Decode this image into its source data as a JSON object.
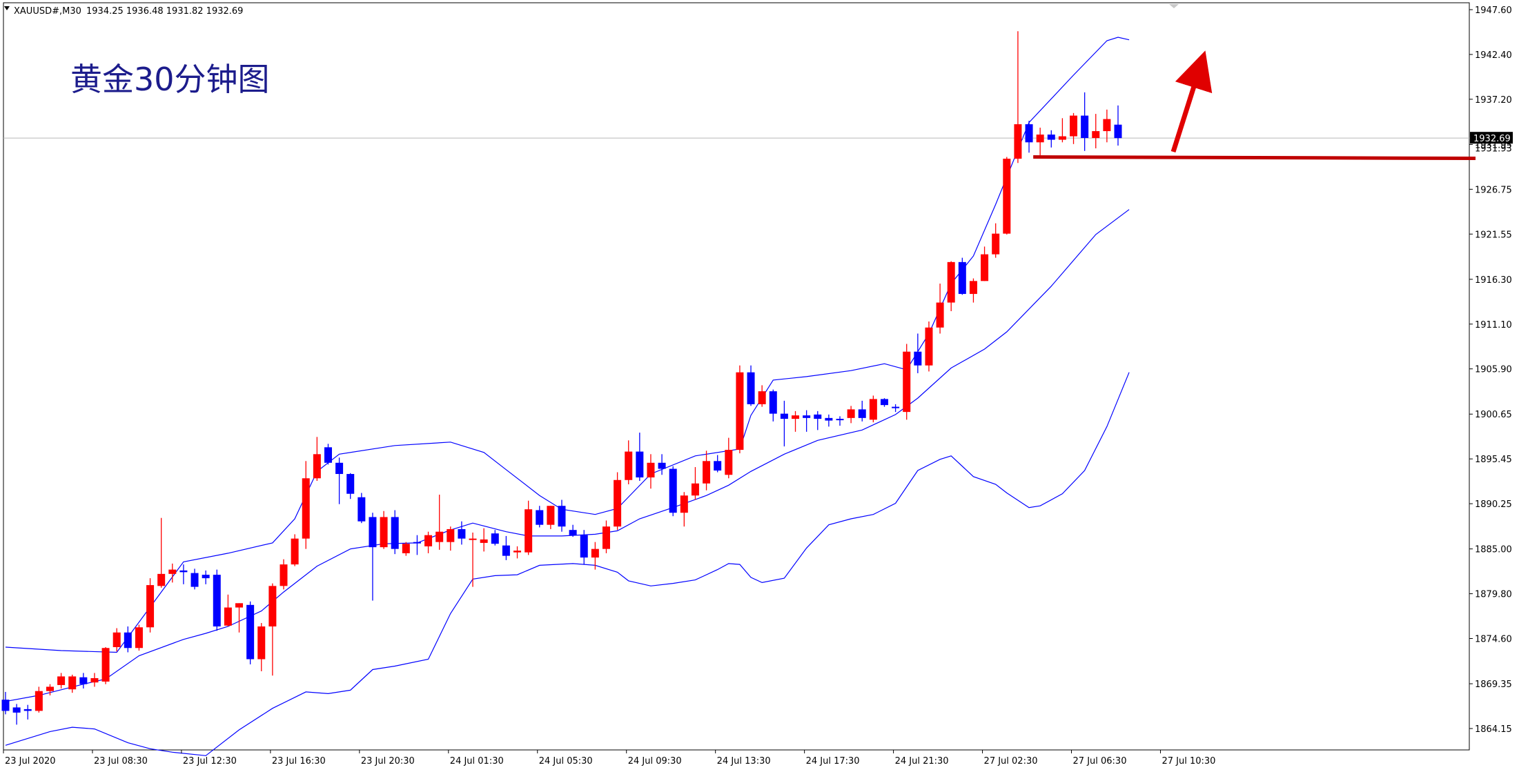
{
  "header": {
    "symbol": "XAUUSD#,M30",
    "ohlc": "1934.25 1936.48 1931.82 1932.69"
  },
  "annotation_title": "黄金30分钟图",
  "current_price_label": "1932.69",
  "hidden_price_label": "1931.93",
  "colors": {
    "bull": "#ff0000",
    "bear": "#0000ff",
    "bands": "#0000ff",
    "annotation": "#e00000",
    "title": "#1c1c8c",
    "grid": "#000000"
  },
  "chart_data": {
    "type": "candlestick",
    "title": "黄金30分钟图",
    "ylim": [
      1861.2,
      1947.6
    ],
    "y_ticks": [
      "1947.60",
      "1942.40",
      "1937.20",
      "1931.95",
      "1926.75",
      "1921.55",
      "1916.30",
      "1911.10",
      "1905.90",
      "1900.65",
      "1895.45",
      "1890.25",
      "1885.00",
      "1879.80",
      "1874.60",
      "1869.35",
      "1864.15"
    ],
    "x_ticks": [
      {
        "label": "23 Jul 2020",
        "bar": 0
      },
      {
        "label": "23 Jul 08:30",
        "bar": 8
      },
      {
        "label": "23 Jul 12:30",
        "bar": 16
      },
      {
        "label": "23 Jul 16:30",
        "bar": 24
      },
      {
        "label": "23 Jul 20:30",
        "bar": 32
      },
      {
        "label": "24 Jul 01:30",
        "bar": 40
      },
      {
        "label": "24 Jul 05:30",
        "bar": 48
      },
      {
        "label": "24 Jul 09:30",
        "bar": 56
      },
      {
        "label": "24 Jul 13:30",
        "bar": 64
      },
      {
        "label": "24 Jul 17:30",
        "bar": 72
      },
      {
        "label": "24 Jul 21:30",
        "bar": 80
      },
      {
        "label": "27 Jul 02:30",
        "bar": 88
      },
      {
        "label": "27 Jul 06:30",
        "bar": 96
      },
      {
        "label": "27 Jul 10:30",
        "bar": 104
      }
    ],
    "candles": [
      [
        1867.5,
        1868.4,
        1865.8,
        1866.2
      ],
      [
        1866.6,
        1867.0,
        1864.6,
        1866.0
      ],
      [
        1866.4,
        1866.9,
        1865.2,
        1866.2
      ],
      [
        1866.2,
        1869.0,
        1866.0,
        1868.5
      ],
      [
        1868.5,
        1869.3,
        1868.0,
        1869.0
      ],
      [
        1869.2,
        1870.6,
        1868.8,
        1870.2
      ],
      [
        1868.7,
        1870.4,
        1868.3,
        1870.2
      ],
      [
        1870.1,
        1870.6,
        1868.8,
        1869.3
      ],
      [
        1869.5,
        1870.6,
        1869.0,
        1870.0
      ],
      [
        1869.6,
        1873.6,
        1869.3,
        1873.5
      ],
      [
        1873.6,
        1875.8,
        1873.1,
        1875.3
      ],
      [
        1875.3,
        1876.0,
        1873.0,
        1873.5
      ],
      [
        1873.5,
        1876.2,
        1873.2,
        1875.9
      ],
      [
        1875.9,
        1881.6,
        1875.3,
        1880.8
      ],
      [
        1880.7,
        1888.6,
        1880.5,
        1882.1
      ],
      [
        1882.1,
        1883.3,
        1881.1,
        1882.6
      ],
      [
        1882.5,
        1883.2,
        1880.9,
        1882.3
      ],
      [
        1882.2,
        1882.7,
        1880.3,
        1880.6
      ],
      [
        1882.0,
        1882.5,
        1880.9,
        1881.6
      ],
      [
        1882.0,
        1882.6,
        1875.5,
        1876.0
      ],
      [
        1876.1,
        1879.7,
        1876.0,
        1878.2
      ],
      [
        1878.2,
        1878.7,
        1875.3,
        1878.7
      ],
      [
        1878.5,
        1878.9,
        1871.6,
        1872.2
      ],
      [
        1872.2,
        1876.4,
        1870.8,
        1876.0
      ],
      [
        1876.0,
        1881.0,
        1870.3,
        1880.7
      ],
      [
        1880.7,
        1883.8,
        1880.3,
        1883.2
      ],
      [
        1883.2,
        1886.7,
        1883.0,
        1886.2
      ],
      [
        1886.2,
        1895.2,
        1885.0,
        1893.2
      ],
      [
        1893.2,
        1898.0,
        1892.9,
        1896.0
      ],
      [
        1896.8,
        1897.2,
        1894.8,
        1895.0
      ],
      [
        1895.0,
        1895.6,
        1890.2,
        1893.7
      ],
      [
        1893.7,
        1893.8,
        1890.8,
        1891.4
      ],
      [
        1891.0,
        1891.5,
        1888.0,
        1888.2
      ],
      [
        1888.7,
        1889.2,
        1879.0,
        1885.2
      ],
      [
        1885.2,
        1889.4,
        1885.0,
        1888.7
      ],
      [
        1888.7,
        1889.5,
        1884.4,
        1885.0
      ],
      [
        1884.5,
        1885.8,
        1884.2,
        1885.6
      ],
      [
        1885.8,
        1886.6,
        1884.3,
        1885.7
      ],
      [
        1885.3,
        1887.0,
        1884.5,
        1886.6
      ],
      [
        1885.8,
        1891.3,
        1884.9,
        1887.0
      ],
      [
        1885.8,
        1887.6,
        1884.8,
        1887.3
      ],
      [
        1887.3,
        1888.2,
        1885.5,
        1886.2
      ],
      [
        1886.2,
        1886.9,
        1880.6,
        1886.2
      ],
      [
        1885.7,
        1887.4,
        1884.7,
        1886.1
      ],
      [
        1886.8,
        1887.2,
        1885.4,
        1885.6
      ],
      [
        1885.4,
        1886.5,
        1883.7,
        1884.2
      ],
      [
        1884.6,
        1885.3,
        1883.9,
        1884.8
      ],
      [
        1884.6,
        1890.6,
        1884.3,
        1889.6
      ],
      [
        1889.5,
        1890.0,
        1887.5,
        1887.8
      ],
      [
        1887.8,
        1890.0,
        1887.3,
        1890.0
      ],
      [
        1890.0,
        1890.7,
        1887.0,
        1887.6
      ],
      [
        1887.2,
        1887.8,
        1886.4,
        1886.6
      ],
      [
        1886.6,
        1887.2,
        1883.2,
        1884.0
      ],
      [
        1884.0,
        1885.8,
        1882.6,
        1885.0
      ],
      [
        1885.0,
        1888.3,
        1884.5,
        1887.6
      ],
      [
        1887.6,
        1893.9,
        1887.2,
        1893.0
      ],
      [
        1893.0,
        1897.6,
        1892.5,
        1896.3
      ],
      [
        1896.3,
        1898.5,
        1892.9,
        1893.3
      ],
      [
        1893.3,
        1896.0,
        1892.0,
        1895.0
      ],
      [
        1895.0,
        1896.0,
        1893.6,
        1894.3
      ],
      [
        1894.3,
        1894.6,
        1888.8,
        1889.2
      ],
      [
        1889.2,
        1891.6,
        1887.6,
        1891.2
      ],
      [
        1891.2,
        1894.5,
        1890.7,
        1892.6
      ],
      [
        1892.6,
        1896.4,
        1891.8,
        1895.2
      ],
      [
        1895.2,
        1895.9,
        1893.9,
        1894.1
      ],
      [
        1893.6,
        1897.9,
        1893.2,
        1896.5
      ],
      [
        1896.5,
        1906.3,
        1896.1,
        1905.5
      ],
      [
        1905.5,
        1906.3,
        1901.6,
        1901.8
      ],
      [
        1901.8,
        1904.0,
        1901.5,
        1903.3
      ],
      [
        1903.3,
        1903.5,
        1899.8,
        1900.7
      ],
      [
        1900.7,
        1902.2,
        1896.9,
        1900.1
      ],
      [
        1900.1,
        1901.0,
        1898.6,
        1900.5
      ],
      [
        1900.5,
        1901.1,
        1898.6,
        1900.2
      ],
      [
        1900.6,
        1901.0,
        1898.8,
        1900.1
      ],
      [
        1900.2,
        1900.6,
        1899.2,
        1899.9
      ],
      [
        1900.1,
        1900.4,
        1899.3,
        1900.0
      ],
      [
        1900.2,
        1901.6,
        1899.6,
        1901.2
      ],
      [
        1901.2,
        1902.2,
        1899.8,
        1900.2
      ],
      [
        1900.0,
        1902.8,
        1899.7,
        1902.4
      ],
      [
        1902.4,
        1902.5,
        1901.5,
        1901.7
      ],
      [
        1901.5,
        1901.8,
        1900.9,
        1901.4
      ],
      [
        1900.9,
        1908.8,
        1900.0,
        1907.9
      ],
      [
        1907.9,
        1910.0,
        1905.4,
        1906.3
      ],
      [
        1906.3,
        1911.4,
        1905.6,
        1910.7
      ],
      [
        1910.7,
        1915.8,
        1910.0,
        1913.6
      ],
      [
        1913.6,
        1918.4,
        1912.6,
        1918.3
      ],
      [
        1918.3,
        1918.8,
        1914.5,
        1914.6
      ],
      [
        1914.6,
        1916.4,
        1913.6,
        1916.1
      ],
      [
        1916.1,
        1920.1,
        1916.1,
        1919.2
      ],
      [
        1919.2,
        1922.8,
        1918.8,
        1921.6
      ],
      [
        1921.6,
        1930.5,
        1921.5,
        1930.3
      ],
      [
        1930.3,
        1945.1,
        1929.8,
        1934.3
      ],
      [
        1934.3,
        1934.7,
        1931.0,
        1932.2
      ],
      [
        1932.2,
        1933.9,
        1930.7,
        1933.1
      ],
      [
        1933.1,
        1933.6,
        1931.6,
        1932.5
      ],
      [
        1932.5,
        1935.0,
        1932.2,
        1932.9
      ],
      [
        1932.9,
        1935.6,
        1932.0,
        1935.3
      ],
      [
        1935.3,
        1938.0,
        1931.2,
        1932.7
      ],
      [
        1932.7,
        1935.5,
        1931.5,
        1933.5
      ],
      [
        1933.5,
        1936.0,
        1932.2,
        1934.9
      ],
      [
        1934.25,
        1936.48,
        1931.82,
        1932.69
      ]
    ],
    "bands": {
      "upper": [
        [
          0,
          1873.6
        ],
        [
          5,
          1873.2
        ],
        [
          10,
          1873.0
        ],
        [
          14,
          1880.0
        ],
        [
          16,
          1883.5
        ],
        [
          20,
          1884.5
        ],
        [
          24,
          1885.7
        ],
        [
          26,
          1888.5
        ],
        [
          28,
          1894.0
        ],
        [
          30,
          1896.0
        ],
        [
          35,
          1897.0
        ],
        [
          40,
          1897.4
        ],
        [
          43,
          1896.2
        ],
        [
          45,
          1894.2
        ],
        [
          48,
          1891.2
        ],
        [
          50,
          1889.6
        ],
        [
          53,
          1889.0
        ],
        [
          55,
          1889.7
        ],
        [
          58,
          1893.7
        ],
        [
          62,
          1895.8
        ],
        [
          66,
          1896.6
        ],
        [
          67,
          1900.5
        ],
        [
          69,
          1904.6
        ],
        [
          72,
          1905.0
        ],
        [
          76,
          1905.7
        ],
        [
          79,
          1906.5
        ],
        [
          81,
          1905.8
        ],
        [
          83,
          1910.0
        ],
        [
          85,
          1915.8
        ],
        [
          87,
          1919.0
        ],
        [
          89,
          1925.0
        ],
        [
          92,
          1934.5
        ],
        [
          96,
          1940.0
        ],
        [
          99,
          1944.0
        ],
        [
          100,
          1944.4
        ],
        [
          101,
          1944.1
        ]
      ],
      "middle": [
        [
          0,
          1867.3
        ],
        [
          3,
          1868.0
        ],
        [
          7,
          1869.3
        ],
        [
          9,
          1869.9
        ],
        [
          12,
          1872.6
        ],
        [
          16,
          1874.5
        ],
        [
          18,
          1875.2
        ],
        [
          20,
          1876.0
        ],
        [
          23,
          1877.8
        ],
        [
          25,
          1880.0
        ],
        [
          28,
          1883.0
        ],
        [
          31,
          1885.0
        ],
        [
          34,
          1885.6
        ],
        [
          37,
          1885.7
        ],
        [
          40,
          1887.2
        ],
        [
          42,
          1888.0
        ],
        [
          45,
          1887.0
        ],
        [
          47,
          1886.5
        ],
        [
          50,
          1886.5
        ],
        [
          53,
          1886.7
        ],
        [
          55,
          1887.1
        ],
        [
          57,
          1888.5
        ],
        [
          60,
          1889.8
        ],
        [
          63,
          1891.2
        ],
        [
          65,
          1892.4
        ],
        [
          67,
          1894.0
        ],
        [
          70,
          1896.0
        ],
        [
          73,
          1897.6
        ],
        [
          77,
          1898.8
        ],
        [
          80,
          1900.6
        ],
        [
          82,
          1902.5
        ],
        [
          85,
          1906.0
        ],
        [
          88,
          1908.2
        ],
        [
          90,
          1910.2
        ],
        [
          94,
          1915.5
        ],
        [
          98,
          1921.5
        ],
        [
          101,
          1924.4
        ]
      ],
      "lower": [
        [
          0,
          1862.2
        ],
        [
          4,
          1863.8
        ],
        [
          6,
          1864.3
        ],
        [
          8,
          1864.1
        ],
        [
          11,
          1862.5
        ],
        [
          13,
          1861.8
        ],
        [
          15,
          1861.4
        ],
        [
          18,
          1861.0
        ],
        [
          21,
          1864.0
        ],
        [
          24,
          1866.5
        ],
        [
          27,
          1868.4
        ],
        [
          29,
          1868.2
        ],
        [
          31,
          1868.6
        ],
        [
          33,
          1871.0
        ],
        [
          35,
          1871.4
        ],
        [
          38,
          1872.2
        ],
        [
          40,
          1877.5
        ],
        [
          42,
          1881.5
        ],
        [
          44,
          1881.9
        ],
        [
          46,
          1882.0
        ],
        [
          48,
          1883.1
        ],
        [
          51,
          1883.3
        ],
        [
          53,
          1883.1
        ],
        [
          55,
          1882.3
        ],
        [
          56,
          1881.3
        ],
        [
          58,
          1880.7
        ],
        [
          60,
          1881.0
        ],
        [
          62,
          1881.4
        ],
        [
          64,
          1882.6
        ],
        [
          65,
          1883.3
        ],
        [
          66,
          1883.2
        ],
        [
          67,
          1881.7
        ],
        [
          68,
          1881.1
        ],
        [
          70,
          1881.6
        ],
        [
          72,
          1885.1
        ],
        [
          74,
          1887.8
        ],
        [
          76,
          1888.5
        ],
        [
          78,
          1889.0
        ],
        [
          80,
          1890.3
        ],
        [
          82,
          1894.1
        ],
        [
          84,
          1895.4
        ],
        [
          85,
          1895.8
        ],
        [
          87,
          1893.4
        ],
        [
          89,
          1892.5
        ],
        [
          90,
          1891.5
        ],
        [
          92,
          1889.8
        ],
        [
          93,
          1890.0
        ],
        [
          95,
          1891.4
        ],
        [
          97,
          1894.1
        ],
        [
          99,
          1899.2
        ],
        [
          101,
          1905.5
        ]
      ]
    },
    "horizontal_line_y": 1930.5,
    "bid_line_y": 1932.69
  }
}
